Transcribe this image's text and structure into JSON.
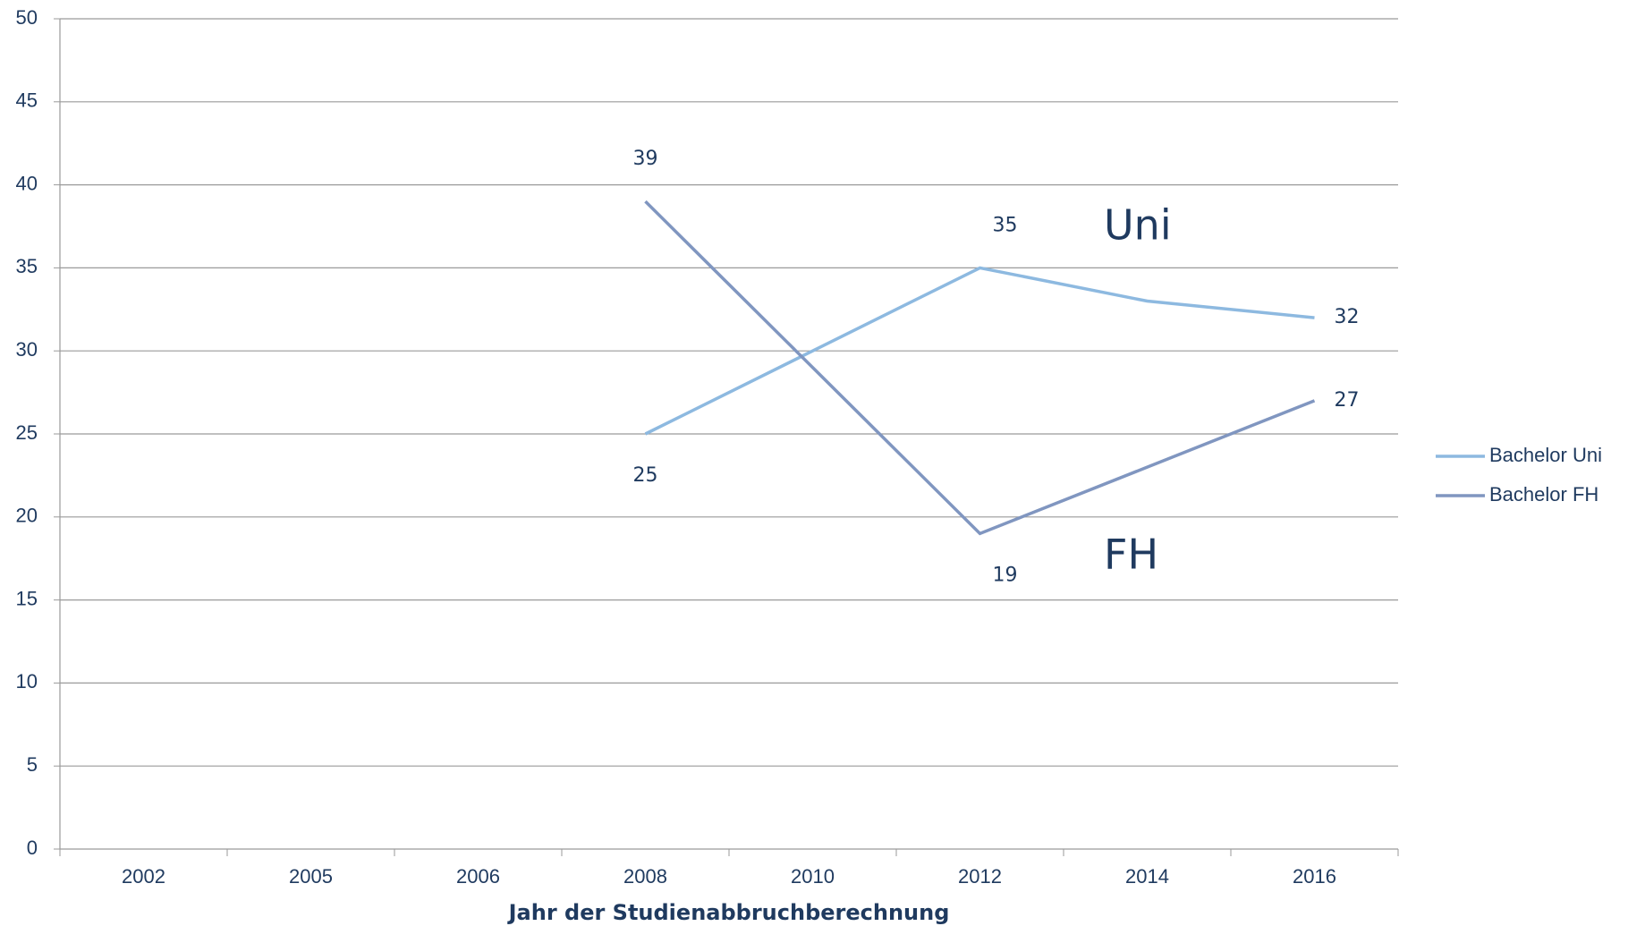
{
  "chart_data": {
    "type": "line",
    "xlabel": "Jahr der Studienabbruchberechnung",
    "categories": [
      "2002",
      "2005",
      "2006",
      "2008",
      "2010",
      "2012",
      "2014",
      "2016"
    ],
    "series": [
      {
        "name": "Bachelor Uni",
        "color": "#8db9e0",
        "values": [
          null,
          null,
          null,
          25,
          30,
          35,
          33,
          32
        ],
        "value_labels": [
          null,
          null,
          null,
          "25",
          null,
          "35",
          null,
          "32"
        ]
      },
      {
        "name": "Bachelor FH",
        "color": "#8096c0",
        "values": [
          null,
          null,
          null,
          39,
          29,
          19,
          23,
          27
        ],
        "value_labels": [
          null,
          null,
          null,
          "39",
          null,
          "19",
          null,
          "27"
        ]
      }
    ],
    "annotations": [
      "Uni",
      "FH"
    ],
    "ylim": [
      0,
      50
    ],
    "yticks": [
      0,
      5,
      10,
      15,
      20,
      25,
      30,
      35,
      40,
      45,
      50
    ],
    "grid": true,
    "legend": "right"
  }
}
